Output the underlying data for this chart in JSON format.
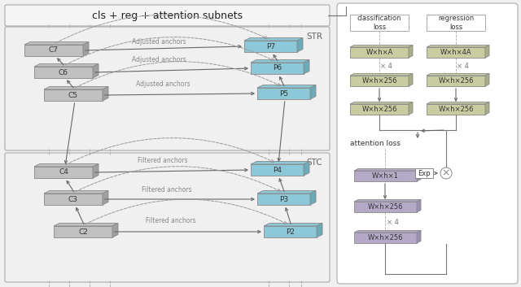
{
  "fig_width": 6.4,
  "fig_height": 3.53,
  "bg_color": "#f0f0f0",
  "gray_face": "#c0c0c0",
  "gray_dark": "#a0a0a0",
  "blue_face": "#8cc8d8",
  "blue_dark": "#6aabb8",
  "green_face": "#c8cca0",
  "green_dark": "#aaae84",
  "purple_face": "#b4aac8",
  "purple_dark": "#9890ae",
  "title_text": "cls + reg + attention subnets",
  "STR_label": "STR",
  "STC_label": "STC",
  "cls_layers": [
    "W×h×A",
    "W×h×256",
    "W×h×256"
  ],
  "reg_layers": [
    "W×h×4A",
    "W×h×256",
    "W×h×256"
  ],
  "att_layers": [
    "W×h×1",
    "W×h×256",
    "W×h×256"
  ]
}
